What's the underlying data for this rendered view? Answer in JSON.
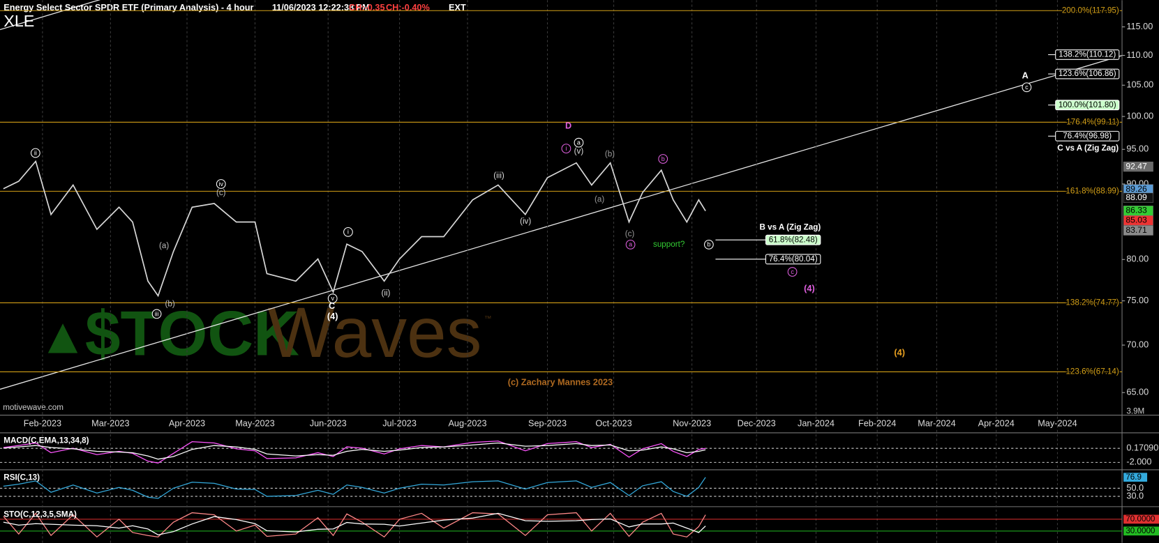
{
  "chart_data": [
    {
      "type": "line",
      "title": "Energy Select Sector SPDR ETF (Primary Analysis) - 4 hour",
      "timestamp": "11/06/2023 12:22:38 PM",
      "change": "CH:-0.35",
      "change_percent": "CH:-0.40%",
      "session": "EXT",
      "symbol": "XLE",
      "source": "motivewave.com",
      "copyright": "(c) Zachary Mannes 2023",
      "logo": {
        "left": "$TOCK",
        "right": "Waves",
        "mark": "™"
      },
      "volume_label": "3.9M",
      "x": [
        2,
        11,
        21,
        30,
        43,
        57,
        70,
        78,
        87,
        93,
        102,
        113,
        126,
        139,
        150,
        157,
        174,
        187,
        196,
        204,
        213,
        226,
        235,
        248,
        261,
        278,
        293,
        309,
        322,
        339,
        348,
        359,
        370,
        378,
        389,
        396,
        404,
        411,
        415
      ],
      "series": [
        {
          "color": "#d8d8d8",
          "values": [
            89.34,
            90.38,
            93.24,
            85.82,
            89.86,
            83.85,
            86.8,
            84.82,
            77.35,
            75.6,
            81.0,
            86.8,
            87.3,
            84.82,
            84.82,
            78.25,
            77.35,
            80.07,
            76.03,
            81.94,
            81.0,
            77.35,
            80.07,
            82.9,
            82.9,
            87.8,
            89.86,
            85.82,
            90.9,
            93.02,
            89.86,
            93.02,
            84.82,
            88.83,
            91.96,
            87.8,
            84.82,
            87.8,
            86.3
          ]
        }
      ],
      "xlim": [
        0,
        660
      ],
      "xticks": [
        {
          "value": 25,
          "label": "Feb-2023"
        },
        {
          "value": 65,
          "label": "Mar-2023"
        },
        {
          "value": 110,
          "label": "Apr-2023"
        },
        {
          "value": 150,
          "label": "May-2023"
        },
        {
          "value": 193,
          "label": "Jun-2023"
        },
        {
          "value": 235,
          "label": "Jul-2023"
        },
        {
          "value": 275,
          "label": "Aug-2023"
        },
        {
          "value": 322,
          "label": "Sep-2023"
        },
        {
          "value": 361,
          "label": "Oct-2023"
        },
        {
          "value": 407,
          "label": "Nov-2023"
        },
        {
          "value": 445,
          "label": "Dec-2023"
        },
        {
          "value": 480,
          "label": "Jan-2024"
        },
        {
          "value": 516,
          "label": "Feb-2024"
        },
        {
          "value": 551,
          "label": "Mar-2024"
        },
        {
          "value": 586,
          "label": "Apr-2024"
        },
        {
          "value": 622,
          "label": "May-2024"
        }
      ],
      "ylim": [
        62.9,
        119.9
      ],
      "log_scale": true,
      "yticks": [
        {
          "value": 65,
          "label": "65.00"
        },
        {
          "value": 70,
          "label": "70.00"
        },
        {
          "value": 75,
          "label": "75.00"
        },
        {
          "value": 80,
          "label": "80.00"
        },
        {
          "value": 90,
          "label": "90.00"
        },
        {
          "value": 95,
          "label": "95.00"
        },
        {
          "value": 100,
          "label": "100.00"
        },
        {
          "value": 105,
          "label": "105.00"
        },
        {
          "value": 110,
          "label": "110.00"
        },
        {
          "value": 115,
          "label": "115.00"
        }
      ],
      "grid": true,
      "levels_color": "#d4a017",
      "levels": [
        {
          "value": 117.95,
          "label": "200.0%(117.95)"
        },
        {
          "value": 99.11,
          "label": "176.4%(99.11)"
        },
        {
          "value": 88.99,
          "label": "161.8%(88.99)"
        },
        {
          "value": 74.77,
          "label": "138.2%(74.77)"
        },
        {
          "value": 67.14,
          "label": "123.6%(67.14)"
        }
      ],
      "price_tags": [
        {
          "value": 92.47,
          "color": "#6a6a6a",
          "text_color": "#ffffff"
        },
        {
          "value": 89.26,
          "color": "#5b9bd5",
          "text_color": "#000000"
        },
        {
          "value": 88.09,
          "color": "#111111",
          "text_color": "#ffffff"
        },
        {
          "value": 86.33,
          "color": "#33cc33",
          "text_color": "#000000"
        },
        {
          "value": 85.03,
          "color": "#ee3333",
          "text_color": "#000000"
        },
        {
          "value": 83.71,
          "color": "#8a8a8a",
          "text_color": "#000000"
        }
      ],
      "target_groups": [
        {
          "title": "C vs A (Zig Zag)",
          "targets": [
            {
              "value": 110.12,
              "label": "138.2%(110.12)",
              "color": "#ffffff"
            },
            {
              "value": 106.86,
              "label": "123.6%(106.86)",
              "color": "#ffffff"
            },
            {
              "value": 101.8,
              "label": "100.0%(101.80)",
              "color": "#ccffcc"
            },
            {
              "value": 96.98,
              "label": "76.4%(96.98)",
              "color": "#ffffff"
            }
          ]
        },
        {
          "title": "B vs A (Zig Zag)",
          "targets": [
            {
              "value": 82.48,
              "label": "61.8%(82.48)",
              "color": "#ccffcc"
            },
            {
              "value": 80.04,
              "label": "76.4%(80.04)",
              "color": "#ffffff"
            }
          ]
        }
      ],
      "annotations": [
        {
          "text": "ii",
          "color": "#ffffff",
          "circled": true
        },
        {
          "text": "iii",
          "color": "#ffffff",
          "circled": true
        },
        {
          "text": "(a)",
          "color": "#bbbbbb",
          "circled": false
        },
        {
          "text": "(b)",
          "color": "#bbbbbb",
          "circled": false
        },
        {
          "text": "iv",
          "color": "#ffffff",
          "circled": true
        },
        {
          "text": "(c)",
          "color": "#bbbbbb",
          "circled": false
        },
        {
          "text": "v",
          "color": "#ffffff",
          "circled": true
        },
        {
          "text": "C",
          "color": "#ffffff",
          "circled": false
        },
        {
          "text": "(4)",
          "color": "#ffffff",
          "circled": false
        },
        {
          "text": "i",
          "color": "#ffffff",
          "circled": true
        },
        {
          "text": "(ii)",
          "color": "#dddddd",
          "circled": false
        },
        {
          "text": "(iii)",
          "color": "#dddddd",
          "circled": false
        },
        {
          "text": "(iv)",
          "color": "#dddddd",
          "circled": false
        },
        {
          "text": "D",
          "color": "#e060e0",
          "circled": false
        },
        {
          "text": "i",
          "color": "#e060e0",
          "circled": true
        },
        {
          "text": "a",
          "color": "#ffffff",
          "circled": true
        },
        {
          "text": "(v)",
          "color": "#dddddd",
          "circled": false
        },
        {
          "text": "(b)",
          "color": "#999999",
          "circled": false
        },
        {
          "text": "(a)",
          "color": "#999999",
          "circled": false
        },
        {
          "text": "(c)",
          "color": "#999999",
          "circled": false
        },
        {
          "text": "a",
          "color": "#e060e0",
          "circled": true
        },
        {
          "text": "b",
          "color": "#e060e0",
          "circled": true
        },
        {
          "text": "support?",
          "color": "#33cc33",
          "circled": false
        },
        {
          "text": "b",
          "color": "#ffffff",
          "circled": true
        },
        {
          "text": "c",
          "color": "#e060e0",
          "circled": true
        },
        {
          "text": "(4)",
          "color": "#e060e0",
          "circled": false
        },
        {
          "text": "(4)",
          "color": "#e8a020",
          "circled": false
        },
        {
          "text": "A",
          "color": "#ffffff",
          "circled": false
        },
        {
          "text": "c",
          "color": "#ffffff",
          "circled": true
        }
      ]
    },
    {
      "type": "line",
      "title": "MACD(C,EMA,13,34,8)",
      "x": [
        2,
        11,
        21,
        30,
        43,
        57,
        70,
        78,
        87,
        93,
        102,
        113,
        126,
        139,
        150,
        157,
        174,
        187,
        196,
        204,
        213,
        226,
        235,
        248,
        261,
        278,
        293,
        309,
        322,
        339,
        348,
        359,
        370,
        378,
        389,
        396,
        404,
        411,
        415
      ],
      "series": [
        {
          "color": "#ff55ff",
          "values": [
            0.3,
            0.6,
            1.0,
            -0.5,
            0.2,
            -0.8,
            -0.3,
            -0.6,
            -1.8,
            -2.1,
            -0.6,
            1.2,
            1.0,
            0.1,
            -0.2,
            -1.4,
            -1.3,
            -0.5,
            -1.1,
            0.4,
            0.2,
            -0.7,
            0.1,
            0.6,
            0.4,
            1.1,
            1.3,
            -0.2,
            0.9,
            1.2,
            0.3,
            0.8,
            -1.2,
            0.1,
            0.9,
            -0.3,
            -1.1,
            0.0,
            0.17
          ]
        },
        {
          "color": "#ffffff",
          "values": [
            0.2,
            0.4,
            0.6,
            0.3,
            0.1,
            -0.3,
            -0.4,
            -0.5,
            -1.0,
            -1.5,
            -1.1,
            0.0,
            0.6,
            0.4,
            0.0,
            -0.7,
            -1.0,
            -0.8,
            -0.9,
            -0.3,
            0.0,
            -0.3,
            -0.1,
            0.3,
            0.4,
            0.7,
            1.0,
            0.5,
            0.6,
            0.9,
            0.6,
            0.7,
            -0.2,
            -0.1,
            0.4,
            0.1,
            -0.5,
            -0.3,
            -0.05
          ]
        }
      ],
      "xlim": [
        0,
        660
      ],
      "ylim": [
        -2.91,
        2.34
      ],
      "yticks": [
        {
          "value": 0.1709,
          "label": "0.17090"
        },
        {
          "value": -2,
          "label": "-2.000"
        }
      ]
    },
    {
      "type": "line",
      "title": "RSI(C,13)",
      "x": [
        2,
        11,
        21,
        30,
        43,
        57,
        70,
        78,
        87,
        93,
        102,
        113,
        126,
        139,
        150,
        157,
        174,
        187,
        196,
        204,
        213,
        226,
        235,
        248,
        261,
        278,
        293,
        309,
        322,
        339,
        348,
        359,
        370,
        378,
        389,
        396,
        404,
        411,
        415
      ],
      "series": [
        {
          "color": "#33aadd",
          "values": [
            55,
            60,
            68,
            40,
            58,
            38,
            52,
            45,
            28,
            25,
            50,
            65,
            62,
            48,
            47,
            30,
            32,
            45,
            35,
            58,
            52,
            38,
            50,
            60,
            58,
            66,
            68,
            48,
            64,
            68,
            52,
            64,
            32,
            56,
            66,
            42,
            30,
            52,
            76.9
          ]
        }
      ],
      "xlim": [
        0,
        660
      ],
      "ylim": [
        15.5,
        91.8
      ],
      "yticks": [
        {
          "value": 50,
          "label": "50.0"
        },
        {
          "value": 30,
          "label": "30.0"
        }
      ],
      "last_value_tag": true
    },
    {
      "type": "line",
      "title": "STO(C,12,3,5,SMA)",
      "x": [
        2,
        11,
        21,
        30,
        43,
        57,
        70,
        78,
        87,
        93,
        102,
        113,
        126,
        139,
        150,
        157,
        174,
        187,
        196,
        204,
        213,
        226,
        235,
        248,
        261,
        278,
        293,
        309,
        322,
        339,
        348,
        359,
        370,
        378,
        389,
        396,
        404,
        411,
        415
      ],
      "series": [
        {
          "color": "#ff8888",
          "values": [
            80,
            20,
            90,
            15,
            85,
            10,
            70,
            25,
            15,
            10,
            60,
            92,
            85,
            30,
            50,
            12,
            20,
            75,
            15,
            88,
            60,
            10,
            70,
            90,
            40,
            92,
            88,
            15,
            85,
            92,
            30,
            90,
            12,
            60,
            90,
            20,
            10,
            45,
            85
          ]
        },
        {
          "color": "#ffffff",
          "values": [
            60,
            50,
            55,
            53,
            50,
            48,
            40,
            48,
            37,
            17,
            28,
            54,
            79,
            69,
            55,
            31,
            27,
            36,
            37,
            59,
            54,
            53,
            47,
            57,
            67,
            74,
            90,
            65,
            63,
            65,
            69,
            71,
            44,
            54,
            54,
            57,
            40,
            25,
            47
          ]
        }
      ],
      "xlim": [
        0,
        660
      ],
      "ylim": [
        -10,
        107.5
      ],
      "levels": [
        {
          "value": 70,
          "label": "70.0000",
          "color": "#e03030"
        },
        {
          "value": 30,
          "label": "30.0000",
          "color": "#22bb22"
        }
      ]
    }
  ]
}
